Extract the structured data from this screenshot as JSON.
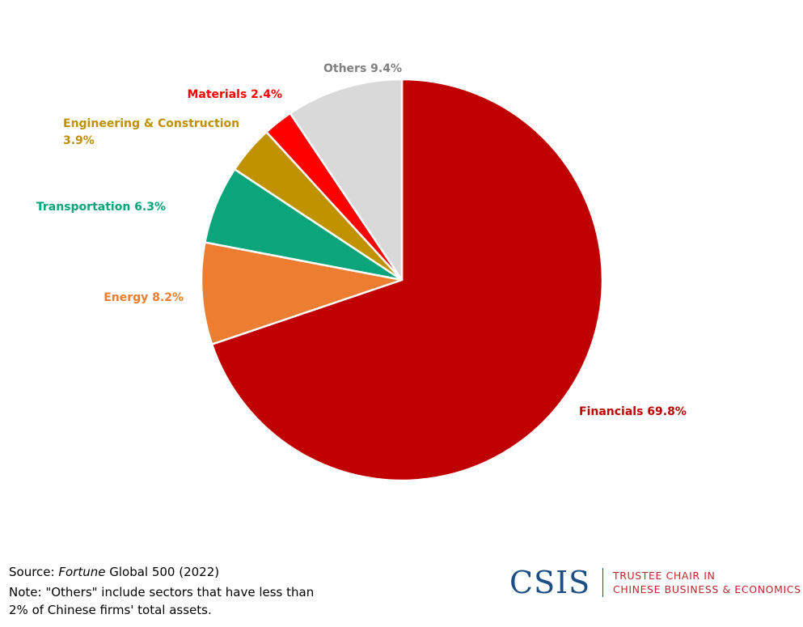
{
  "chart_data": {
    "type": "pie",
    "title": "",
    "start_angle_deg": 0,
    "direction": "clockwise",
    "slices": [
      {
        "name": "Financials",
        "value": 69.8,
        "label": "Financials 69.8%",
        "color": "#c00000",
        "label_color": "#c00000"
      },
      {
        "name": "Energy",
        "value": 8.2,
        "label": "Energy 8.2%",
        "color": "#ed7d31",
        "label_color": "#ed7d31"
      },
      {
        "name": "Transportation",
        "value": 6.3,
        "label": "Transportation 6.3%",
        "color": "#0aa57a",
        "label_color": "#0aa57a"
      },
      {
        "name": "Engineering & Construction",
        "value": 3.9,
        "label": "Engineering & Construction|3.9%",
        "color": "#c09200",
        "label_color": "#bf9000"
      },
      {
        "name": "Materials",
        "value": 2.4,
        "label": "Materials 2.4%",
        "color": "#ff0000",
        "label_color": "#ff0000"
      },
      {
        "name": "Others",
        "value": 9.4,
        "label": "Others 9.4%",
        "color": "#d9d9d9",
        "label_color": "#808080"
      }
    ],
    "legend": "none"
  },
  "footer": {
    "source_prefix": "Source: ",
    "source_work": "Fortune",
    "source_suffix": "  Global 500 (2022)",
    "note": "Note: \"Others\" include sectors that have less than 2% of Chinese firms' total assets."
  },
  "logo": {
    "mark": "CSIS",
    "line1": "TRUSTEE CHAIR IN",
    "line2": "CHINESE BUSINESS & ECONOMICS",
    "mark_color": "#1d4f84",
    "text_color": "#c0282d"
  }
}
